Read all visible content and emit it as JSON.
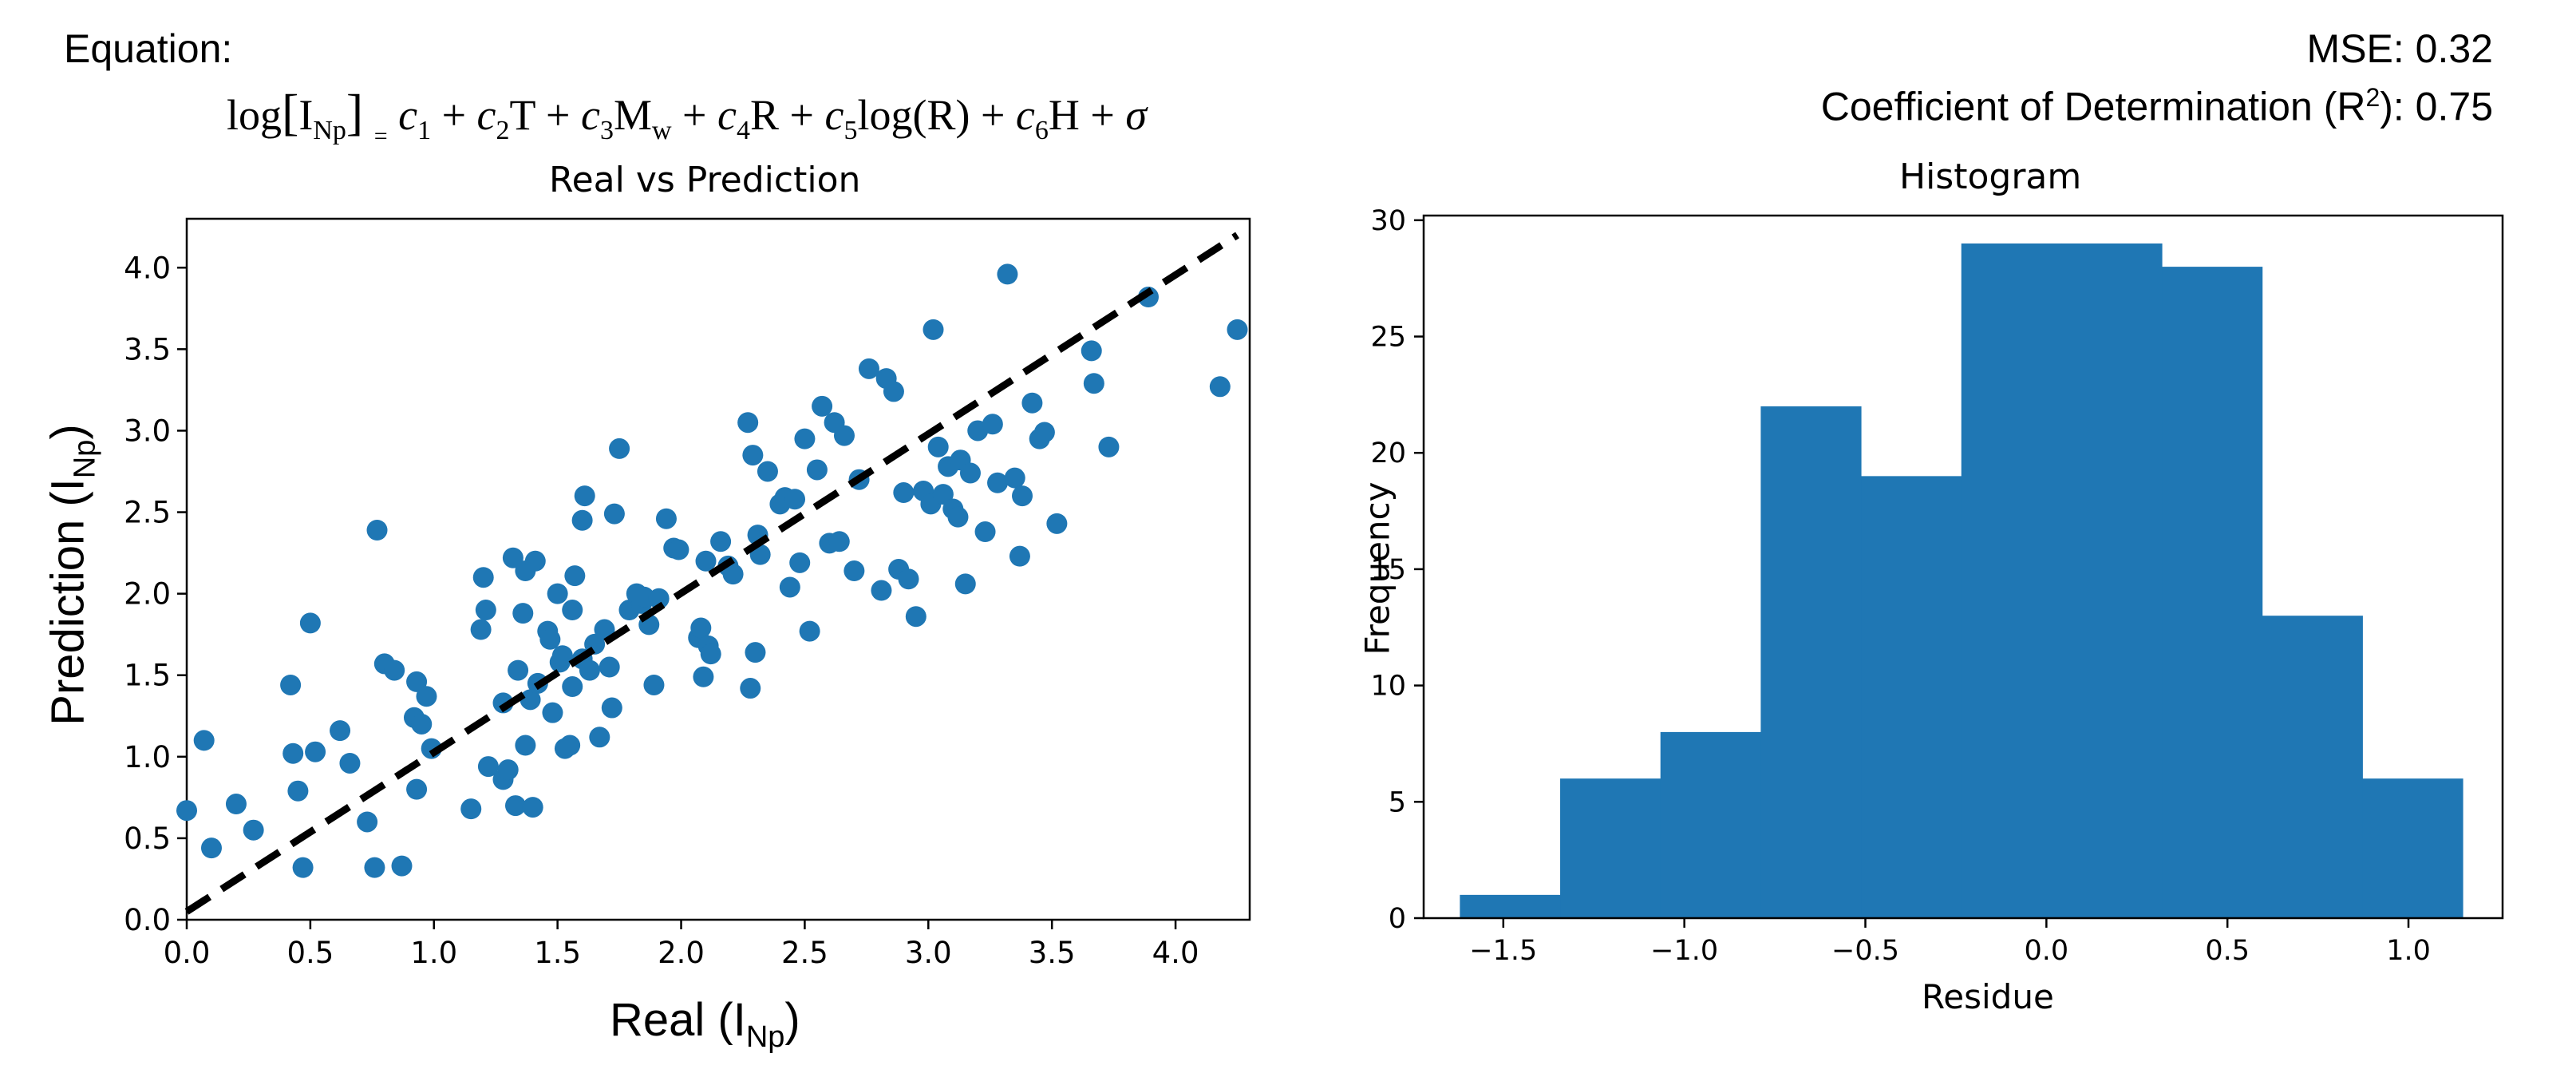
{
  "header": {
    "equation_label": "Equation:",
    "mse": "MSE: 0.32",
    "r2_prefix": "Coefficient of Determination (R",
    "r2_sup": "2",
    "r2_suffix": "): 0.75"
  },
  "equation": {
    "log": "log",
    "I": "I",
    "I_sub": "Np",
    "eq_sign": "=",
    "c": "c",
    "subs": [
      "1",
      "2",
      "3",
      "4",
      "5",
      "6"
    ],
    "T": "T",
    "M": "M",
    "M_sub": "w",
    "R": "R",
    "logR": "log(R)",
    "H": "H",
    "sigma": "σ",
    "plus": "+"
  },
  "colors": {
    "points": "#1f77b4",
    "bars": "#1f77b4",
    "axis": "#000000",
    "fit_line": "#000000"
  },
  "chart_data": [
    {
      "type": "scatter",
      "title": "Real vs Prediction",
      "xlabel_main": "Real (I",
      "xlabel_sub": "Np",
      "xlabel_end": ")",
      "ylabel_main": "Prediction (I",
      "ylabel_sub": "Np",
      "ylabel_end": ")",
      "xlim": [
        0.0,
        4.3
      ],
      "ylim": [
        0.0,
        4.3
      ],
      "xticks": [
        "0.0",
        "0.5",
        "1.0",
        "1.5",
        "2.0",
        "2.5",
        "3.0",
        "3.5",
        "4.0"
      ],
      "yticks": [
        "0.0",
        "0.5",
        "1.0",
        "1.5",
        "2.0",
        "2.5",
        "3.0",
        "3.5",
        "4.0"
      ],
      "fit_line": [
        [
          0.0,
          0.05
        ],
        [
          4.25,
          4.2
        ]
      ],
      "points": [
        [
          0.0,
          0.67
        ],
        [
          0.07,
          1.1
        ],
        [
          0.1,
          0.44
        ],
        [
          0.2,
          0.71
        ],
        [
          0.27,
          0.55
        ],
        [
          0.42,
          1.44
        ],
        [
          0.43,
          1.02
        ],
        [
          0.45,
          0.79
        ],
        [
          0.47,
          0.32
        ],
        [
          0.5,
          1.82
        ],
        [
          0.52,
          1.03
        ],
        [
          0.62,
          1.16
        ],
        [
          0.66,
          0.96
        ],
        [
          0.73,
          0.6
        ],
        [
          0.76,
          0.32
        ],
        [
          0.77,
          2.39
        ],
        [
          0.8,
          1.57
        ],
        [
          0.84,
          1.53
        ],
        [
          0.87,
          0.33
        ],
        [
          0.92,
          1.24
        ],
        [
          0.93,
          0.8
        ],
        [
          0.93,
          1.46
        ],
        [
          0.95,
          1.2
        ],
        [
          0.97,
          1.37
        ],
        [
          0.99,
          1.05
        ],
        [
          1.15,
          0.68
        ],
        [
          1.19,
          1.78
        ],
        [
          1.2,
          2.1
        ],
        [
          1.21,
          1.9
        ],
        [
          1.22,
          0.94
        ],
        [
          1.28,
          1.33
        ],
        [
          1.28,
          0.86
        ],
        [
          1.3,
          0.92
        ],
        [
          1.32,
          2.22
        ],
        [
          1.33,
          0.7
        ],
        [
          1.34,
          1.53
        ],
        [
          1.36,
          1.88
        ],
        [
          1.37,
          2.14
        ],
        [
          1.37,
          1.07
        ],
        [
          1.39,
          1.35
        ],
        [
          1.4,
          0.69
        ],
        [
          1.41,
          2.2
        ],
        [
          1.42,
          1.45
        ],
        [
          1.46,
          1.77
        ],
        [
          1.47,
          1.72
        ],
        [
          1.48,
          1.27
        ],
        [
          1.5,
          2.0
        ],
        [
          1.51,
          1.58
        ],
        [
          1.52,
          1.62
        ],
        [
          1.53,
          1.05
        ],
        [
          1.55,
          1.07
        ],
        [
          1.56,
          1.43
        ],
        [
          1.56,
          1.9
        ],
        [
          1.57,
          2.11
        ],
        [
          1.6,
          1.6
        ],
        [
          1.6,
          2.45
        ],
        [
          1.61,
          2.6
        ],
        [
          1.63,
          1.53
        ],
        [
          1.65,
          1.69
        ],
        [
          1.67,
          1.12
        ],
        [
          1.69,
          1.78
        ],
        [
          1.71,
          1.55
        ],
        [
          1.72,
          1.3
        ],
        [
          1.73,
          2.49
        ],
        [
          1.75,
          2.89
        ],
        [
          1.79,
          1.9
        ],
        [
          1.82,
          2.0
        ],
        [
          1.84,
          1.94
        ],
        [
          1.85,
          1.98
        ],
        [
          1.87,
          1.81
        ],
        [
          1.89,
          1.44
        ],
        [
          1.91,
          1.97
        ],
        [
          1.94,
          2.46
        ],
        [
          1.97,
          2.28
        ],
        [
          1.99,
          2.27
        ],
        [
          2.07,
          1.73
        ],
        [
          2.08,
          1.79
        ],
        [
          2.09,
          1.49
        ],
        [
          2.1,
          2.2
        ],
        [
          2.11,
          1.68
        ],
        [
          2.12,
          1.63
        ],
        [
          2.16,
          2.32
        ],
        [
          2.19,
          2.17
        ],
        [
          2.21,
          2.12
        ],
        [
          2.27,
          3.05
        ],
        [
          2.28,
          1.42
        ],
        [
          2.29,
          2.85
        ],
        [
          2.3,
          1.64
        ],
        [
          2.31,
          2.36
        ],
        [
          2.32,
          2.24
        ],
        [
          2.35,
          2.75
        ],
        [
          2.4,
          2.55
        ],
        [
          2.42,
          2.59
        ],
        [
          2.44,
          2.04
        ],
        [
          2.46,
          2.58
        ],
        [
          2.48,
          2.19
        ],
        [
          2.5,
          2.95
        ],
        [
          2.52,
          1.77
        ],
        [
          2.55,
          2.76
        ],
        [
          2.57,
          3.15
        ],
        [
          2.6,
          2.31
        ],
        [
          2.62,
          3.05
        ],
        [
          2.64,
          2.32
        ],
        [
          2.66,
          2.97
        ],
        [
          2.7,
          2.14
        ],
        [
          2.72,
          2.7
        ],
        [
          2.76,
          3.38
        ],
        [
          2.81,
          2.02
        ],
        [
          2.83,
          3.32
        ],
        [
          2.86,
          3.24
        ],
        [
          2.88,
          2.15
        ],
        [
          2.9,
          2.62
        ],
        [
          2.92,
          2.09
        ],
        [
          2.95,
          1.86
        ],
        [
          2.98,
          2.63
        ],
        [
          3.01,
          2.55
        ],
        [
          3.02,
          3.62
        ],
        [
          3.04,
          2.9
        ],
        [
          3.06,
          2.61
        ],
        [
          3.08,
          2.78
        ],
        [
          3.1,
          2.52
        ],
        [
          3.12,
          2.47
        ],
        [
          3.13,
          2.82
        ],
        [
          3.15,
          2.06
        ],
        [
          3.17,
          2.74
        ],
        [
          3.2,
          3.0
        ],
        [
          3.23,
          2.38
        ],
        [
          3.26,
          3.04
        ],
        [
          3.28,
          2.68
        ],
        [
          3.32,
          3.96
        ],
        [
          3.35,
          2.71
        ],
        [
          3.37,
          2.23
        ],
        [
          3.38,
          2.6
        ],
        [
          3.42,
          3.17
        ],
        [
          3.45,
          2.95
        ],
        [
          3.47,
          2.99
        ],
        [
          3.52,
          2.43
        ],
        [
          3.66,
          3.49
        ],
        [
          3.67,
          3.29
        ],
        [
          3.73,
          2.9
        ],
        [
          3.89,
          3.82
        ],
        [
          4.18,
          3.27
        ],
        [
          4.25,
          3.62
        ]
      ]
    },
    {
      "type": "histogram",
      "title": "Histogram",
      "xlabel": "Residue",
      "ylabel": "Frequency",
      "xlim": [
        -1.72,
        1.26
      ],
      "ylim": [
        0,
        30.2
      ],
      "xticks": [
        {
          "v": -1.5,
          "label": "−1.5"
        },
        {
          "v": -1.0,
          "label": "−1.0"
        },
        {
          "v": -0.5,
          "label": "−0.5"
        },
        {
          "v": 0.0,
          "label": "0.0"
        },
        {
          "v": 0.5,
          "label": "0.5"
        },
        {
          "v": 1.0,
          "label": "1.0"
        }
      ],
      "yticks": [
        {
          "v": 0,
          "label": "0"
        },
        {
          "v": 5,
          "label": "5"
        },
        {
          "v": 10,
          "label": "10"
        },
        {
          "v": 15,
          "label": "15"
        },
        {
          "v": 20,
          "label": "20"
        },
        {
          "v": 25,
          "label": "25"
        },
        {
          "v": 30,
          "label": "30"
        }
      ],
      "bin_edges": [
        -1.62,
        -1.343,
        -1.066,
        -0.789,
        -0.512,
        -0.235,
        0.042,
        0.319,
        0.596,
        0.873,
        1.15
      ],
      "counts": [
        1,
        6,
        8,
        22,
        19,
        29,
        29,
        28,
        13,
        6
      ]
    }
  ]
}
